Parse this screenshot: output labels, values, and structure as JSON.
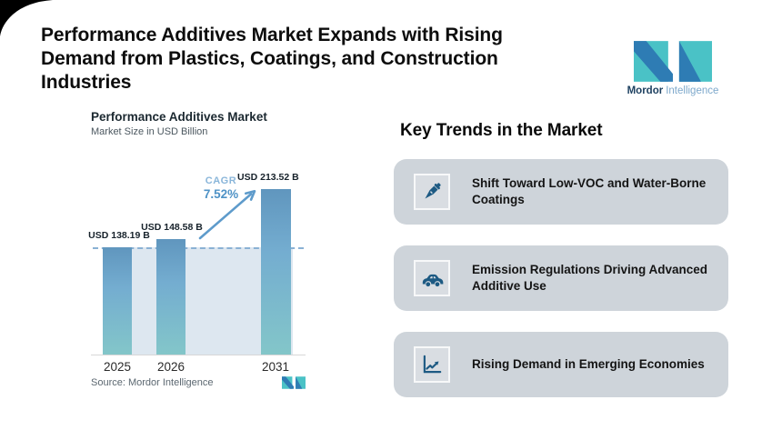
{
  "title": "Performance Additives Market Expands with Rising Demand from Plastics, Coatings, and Construction Industries",
  "brand": {
    "name_bold": "Mordor",
    "name_light": "Intelligence",
    "teal": "#4ac2c6",
    "blue": "#2e7cb4"
  },
  "chart_data": {
    "type": "bar",
    "title": "Performance Additives Market",
    "subtitle": "Market Size in USD Billion",
    "categories": [
      "2025",
      "2026",
      "2031"
    ],
    "values": [
      138.19,
      148.58,
      213.52
    ],
    "value_labels": [
      "USD 138.19 B",
      "USD 148.58 B",
      "USD 213.52 B"
    ],
    "unit": "USD Billion",
    "ylim": [
      0,
      230
    ],
    "grid": "off",
    "legend": "none",
    "cagr_label": "CAGR",
    "cagr_value": "7.52%",
    "reference_line_value": 138.19,
    "source": "Source: Mordor Intelligence",
    "bar_gradient_top": "#6096be",
    "bar_gradient_bottom": "#83c6c9"
  },
  "trends": {
    "heading": "Key Trends in the Market",
    "items": [
      {
        "icon": "eyedropper-icon",
        "text": "Shift Toward Low-VOC and Water-Borne Coatings"
      },
      {
        "icon": "car-icon",
        "text": "Emission Regulations Driving Advanced Additive Use"
      },
      {
        "icon": "line-chart-icon",
        "text": "Rising Demand in Emerging Economies"
      }
    ]
  },
  "colors": {
    "card_bg": "#ced4da",
    "icon_color": "#1d5a83",
    "cagr_text": "#4e92c6",
    "arrow": "#5e9bcb",
    "shade": "#dde7f0",
    "dashed_line": "#8ab1d4"
  }
}
